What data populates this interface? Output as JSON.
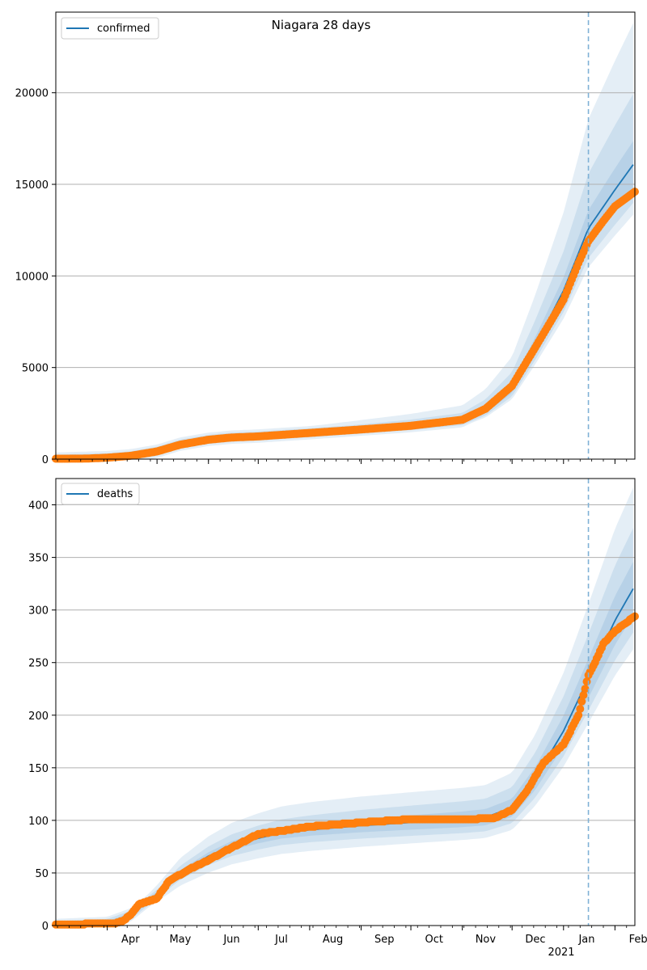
{
  "title": "Niagara 28 days",
  "colors": {
    "model": "#1f77b4",
    "observed": "#ff7f0e",
    "band": "#1f77b4",
    "grid": "#b0b0b0",
    "vline": "#7fb1d6"
  },
  "x_axis": {
    "start": "2020-03-01",
    "end": "2021-02-13",
    "month_labels": [
      {
        "label": "Apr",
        "date": "2020-04-01"
      },
      {
        "label": "May",
        "date": "2020-05-01"
      },
      {
        "label": "Jun",
        "date": "2020-06-01"
      },
      {
        "label": "Jul",
        "date": "2020-07-01"
      },
      {
        "label": "Aug",
        "date": "2020-08-01"
      },
      {
        "label": "Sep",
        "date": "2020-09-01"
      },
      {
        "label": "Oct",
        "date": "2020-10-01"
      },
      {
        "label": "Nov",
        "date": "2020-11-01"
      },
      {
        "label": "Dec",
        "date": "2020-12-01"
      },
      {
        "label": "Jan",
        "date": "2021-01-01"
      },
      {
        "label": "Feb",
        "date": "2021-02-01"
      }
    ],
    "year_label": "2021",
    "forecast_start": "2021-01-16"
  },
  "chart_data": [
    {
      "type": "line",
      "legend": "confirmed",
      "legend_position": "upper-left",
      "ylim": [
        0,
        24400
      ],
      "yticks": [
        0,
        5000,
        10000,
        15000,
        20000
      ],
      "grid": true,
      "model": {
        "x": [
          "2020-03-01",
          "2020-04-01",
          "2020-04-15",
          "2020-05-01",
          "2020-05-15",
          "2020-06-01",
          "2020-06-15",
          "2020-07-01",
          "2020-08-01",
          "2020-09-01",
          "2020-10-01",
          "2020-11-01",
          "2020-11-15",
          "2020-12-01",
          "2020-12-15",
          "2021-01-01",
          "2021-01-16",
          "2021-02-01",
          "2021-02-13"
        ],
        "y": [
          0,
          80,
          180,
          430,
          820,
          1080,
          1200,
          1260,
          1440,
          1640,
          1830,
          2100,
          2700,
          3900,
          6200,
          9200,
          12600,
          14700,
          16200
        ]
      },
      "observed": {
        "x": [
          "2020-03-01",
          "2020-03-20",
          "2020-04-01",
          "2020-04-15",
          "2020-05-01",
          "2020-05-15",
          "2020-06-01",
          "2020-06-15",
          "2020-07-01",
          "2020-08-01",
          "2020-09-01",
          "2020-10-01",
          "2020-11-01",
          "2020-11-15",
          "2020-12-01",
          "2020-12-15",
          "2021-01-01",
          "2021-01-10",
          "2021-01-16",
          "2021-01-25",
          "2021-02-01",
          "2021-02-13"
        ],
        "y": [
          20,
          30,
          80,
          180,
          420,
          790,
          1060,
          1180,
          1240,
          1430,
          1620,
          1820,
          2150,
          2750,
          4000,
          6100,
          8700,
          10700,
          11900,
          13000,
          13800,
          14600
        ]
      },
      "bands": [
        {
          "lower_factor": [
            0.97,
            0.92
          ],
          "upper_factor": [
            1.03,
            1.08
          ]
        },
        {
          "lower_factor": [
            0.94,
            0.87
          ],
          "upper_factor": [
            1.06,
            1.24
          ]
        },
        {
          "lower_factor": [
            0.91,
            0.83
          ],
          "upper_factor": [
            1.09,
            1.48
          ]
        }
      ]
    },
    {
      "type": "line",
      "legend": "deaths",
      "legend_position": "upper-left",
      "ylim": [
        0,
        425
      ],
      "yticks": [
        0,
        50,
        100,
        150,
        200,
        250,
        300,
        350,
        400
      ],
      "grid": true,
      "model": {
        "x": [
          "2020-03-01",
          "2020-04-01",
          "2020-04-15",
          "2020-05-01",
          "2020-05-15",
          "2020-06-01",
          "2020-06-15",
          "2020-07-01",
          "2020-07-15",
          "2020-08-01",
          "2020-09-01",
          "2020-10-01",
          "2020-11-01",
          "2020-11-15",
          "2020-12-01",
          "2020-12-15",
          "2021-01-01",
          "2021-01-16",
          "2021-02-01",
          "2021-02-13"
        ],
        "y": [
          0,
          2,
          10,
          30,
          50,
          66,
          76,
          83,
          88,
          91,
          95,
          98,
          101,
          103,
          112,
          140,
          185,
          235,
          290,
          323
        ]
      },
      "observed": {
        "x": [
          "2020-03-01",
          "2020-04-05",
          "2020-04-10",
          "2020-04-15",
          "2020-04-20",
          "2020-05-01",
          "2020-05-08",
          "2020-05-20",
          "2020-06-01",
          "2020-06-10",
          "2020-06-20",
          "2020-07-01",
          "2020-07-15",
          "2020-08-01",
          "2020-09-01",
          "2020-10-01",
          "2020-11-01",
          "2020-11-20",
          "2020-12-01",
          "2020-12-10",
          "2020-12-20",
          "2021-01-01",
          "2021-01-10",
          "2021-01-16",
          "2021-01-20",
          "2021-01-25",
          "2021-02-01",
          "2021-02-13"
        ],
        "y": [
          1,
          2,
          4,
          10,
          20,
          26,
          42,
          53,
          62,
          70,
          78,
          87,
          90,
          94,
          98,
          101,
          101,
          102,
          110,
          128,
          155,
          172,
          200,
          238,
          250,
          268,
          280,
          294
        ]
      },
      "bands": [
        {
          "lower_factor": [
            0.95,
            0.92
          ],
          "upper_factor": [
            1.05,
            1.08
          ]
        },
        {
          "lower_factor": [
            0.87,
            0.87
          ],
          "upper_factor": [
            1.13,
            1.18
          ]
        },
        {
          "lower_factor": [
            0.75,
            0.82
          ],
          "upper_factor": [
            1.28,
            1.3
          ]
        }
      ]
    }
  ]
}
